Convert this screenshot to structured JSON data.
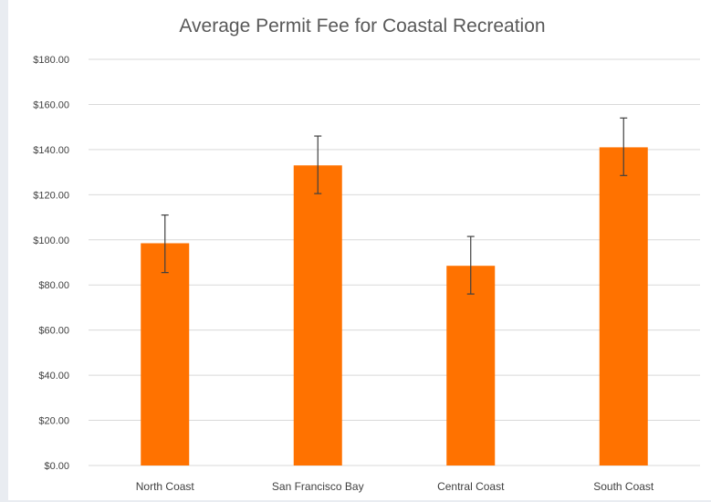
{
  "chart_data": {
    "type": "bar",
    "title": "Average Permit Fee for Coastal Recreation",
    "xlabel": "",
    "ylabel": "",
    "categories": [
      "North Coast",
      "San Francisco Bay",
      "Central Coast",
      "South Coast"
    ],
    "values": [
      98.5,
      133,
      88.5,
      141
    ],
    "error_bars": [
      {
        "low": 85.5,
        "high": 111
      },
      {
        "low": 120.5,
        "high": 146
      },
      {
        "low": 76,
        "high": 101.5
      },
      {
        "low": 128.5,
        "high": 154
      }
    ],
    "ylim": [
      0,
      180
    ],
    "yticks": [
      0,
      20,
      40,
      60,
      80,
      100,
      120,
      140,
      160,
      180
    ],
    "ytick_labels": [
      "$0.00",
      "$20.00",
      "$40.00",
      "$60.00",
      "$80.00",
      "$100.00",
      "$120.00",
      "$140.00",
      "$160.00",
      "$180.00"
    ],
    "grid": true,
    "legend": "none",
    "bar_color": "#ff7200",
    "error_bar_color": "#404040",
    "grid_color": "#d9d9d9"
  }
}
